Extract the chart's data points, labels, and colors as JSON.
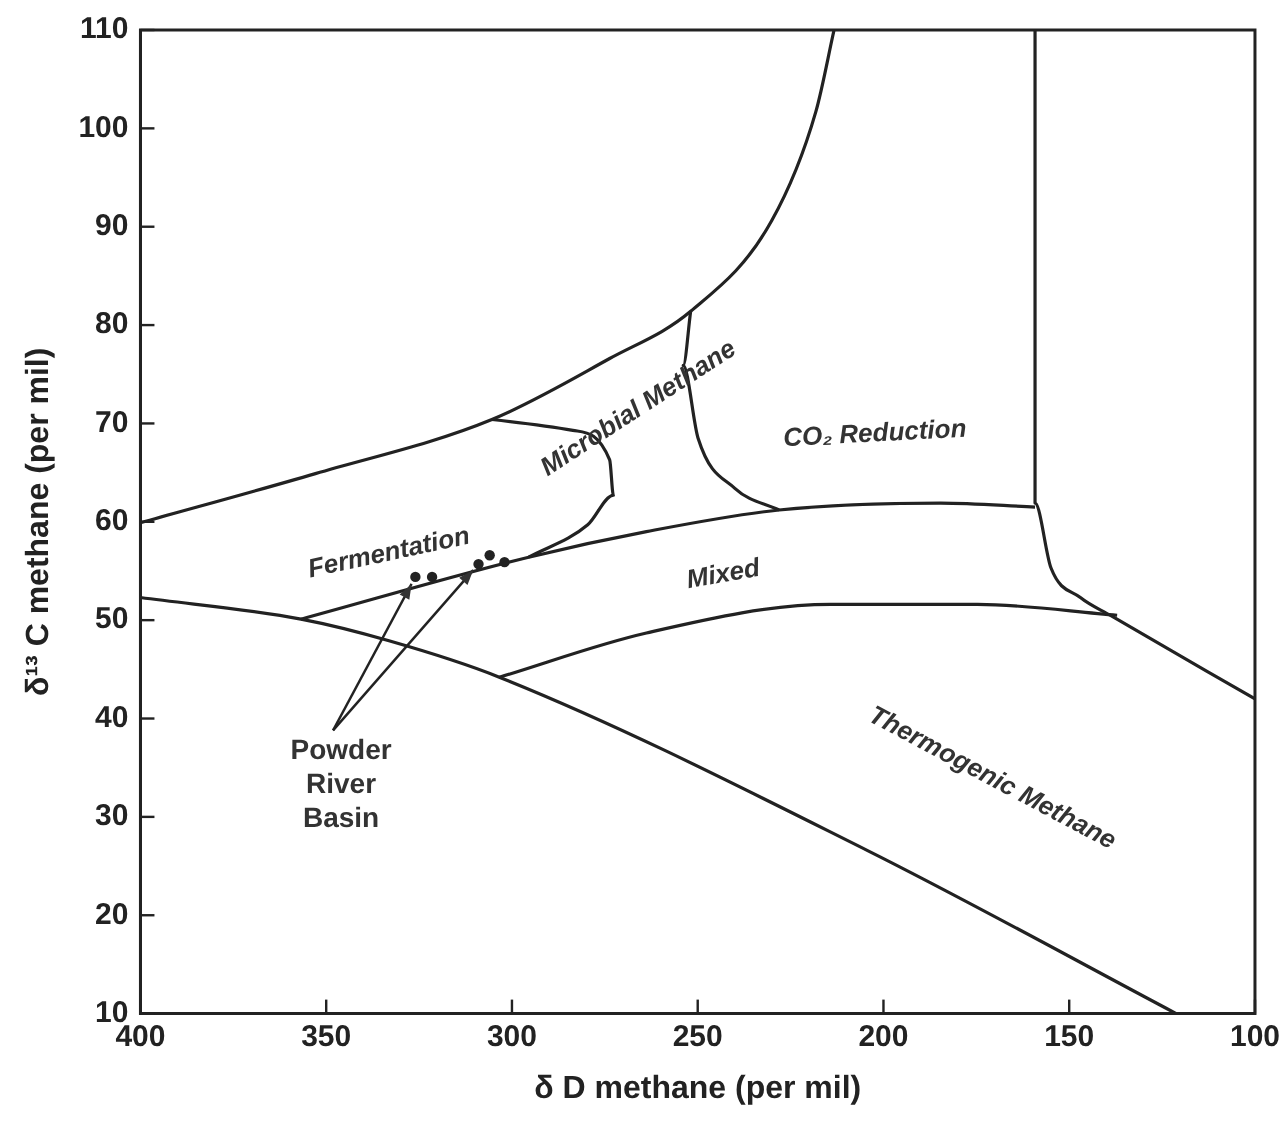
{
  "chart_data": {
    "type": "line",
    "xlabel": "δ D methane (per mil)",
    "ylabel": "δ¹³ C methane (per mil)",
    "xlim": [
      400,
      100
    ],
    "xticks": [
      400,
      350,
      300,
      250,
      200,
      150,
      100
    ],
    "ylim": [
      10,
      110
    ],
    "yticks": [
      10,
      20,
      30,
      40,
      50,
      60,
      70,
      80,
      90,
      100,
      110
    ],
    "grid": false,
    "legend": false,
    "marker": "none",
    "line_style": "solid",
    "series": [
      {
        "color": "#222222",
        "x": [
          400,
          352.9,
          305.4,
          273.7,
          251.9,
          230.1,
          218.2,
          213.3
        ],
        "values": [
          59.9,
          64.9,
          70.4,
          76.6,
          81.4,
          90.6,
          101.7,
          110
        ]
      },
      {
        "color": "#222222",
        "x": [
          159.2,
          159.2,
          154.9,
          147,
          139,
          100
        ],
        "values": [
          110,
          61.9,
          55.3,
          52.3,
          50.5,
          42
        ]
      },
      {
        "color": "#222222",
        "x": [
          400,
          356.8,
          333.1,
          303.4,
          204.4,
          121.2
        ],
        "values": [
          52.3,
          50.1,
          47.9,
          44.2,
          26.6,
          10
        ]
      },
      {
        "color": "#222222",
        "x": [
          303.4,
          263.8,
          214.3,
          174.7,
          137.1
        ],
        "values": [
          44.2,
          48.7,
          51.6,
          51.6,
          50.5
        ]
      },
      {
        "color": "#222222",
        "x": [
          356.8,
          295.5,
          263.8,
          228.1,
          184.6,
          159.2
        ],
        "values": [
          50.1,
          56.4,
          59,
          61.2,
          61.9,
          61.5
        ]
      },
      {
        "color": "#222222",
        "x": [
          305.4,
          283.6,
          273.7,
          272.7,
          279.6,
          295.5
        ],
        "values": [
          70.4,
          69.3,
          66.3,
          62.7,
          59.7,
          56.4
        ]
      },
      {
        "color": "#222222",
        "x": [
          251.9,
          253.9,
          249.9,
          240,
          228.1
        ],
        "values": [
          81.4,
          75.9,
          68.5,
          63.4,
          61.2
        ]
      },
      {
        "type": "scatter",
        "marker": "circle",
        "color": "#222222",
        "x": [
          326,
          321.5,
          309,
          306,
          302
        ],
        "values": [
          54.4,
          54.4,
          55.7,
          56.6,
          55.9
        ]
      }
    ],
    "annotations": [
      "Fermentation",
      "Microbial Methane",
      "CO₂ Reduction",
      "Mixed",
      "Thermogenic Methane",
      {
        "text": "Powder\nRiver\nBasin",
        "x": 326,
        "y": 54.4
      }
    ]
  }
}
